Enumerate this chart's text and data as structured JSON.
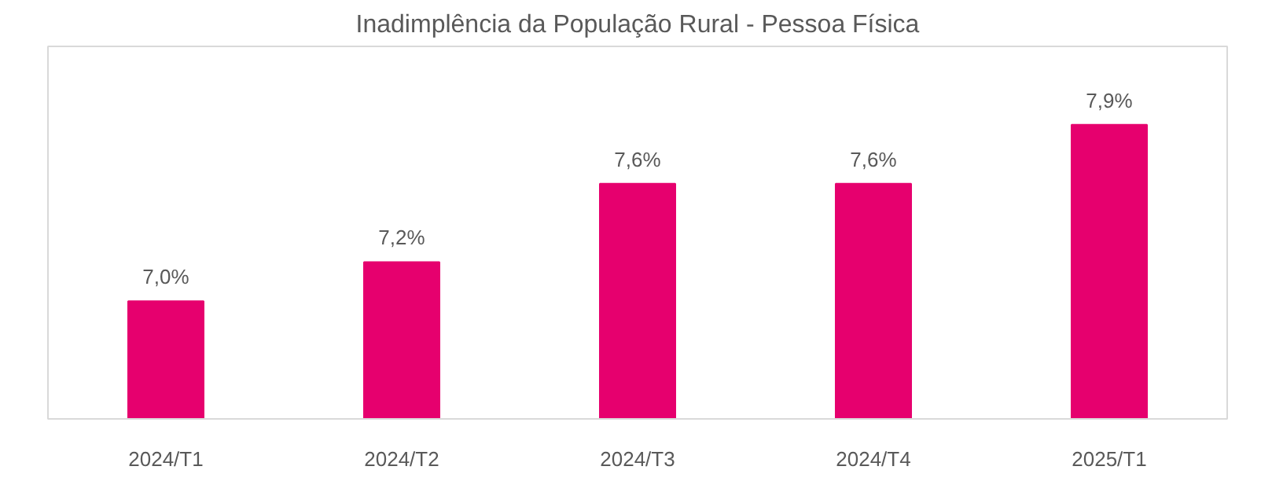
{
  "chart_data": {
    "type": "bar",
    "title": "Inadimplência da População Rural - Pessoa Física",
    "categories": [
      "2024/T1",
      "2024/T2",
      "2024/T3",
      "2024/T4",
      "2025/T1"
    ],
    "values": [
      7.0,
      7.2,
      7.6,
      7.6,
      7.9
    ],
    "value_labels": [
      "7,0%",
      "7,2%",
      "7,6%",
      "7,6%",
      "7,9%"
    ],
    "color": "#e6006e",
    "ylim": [
      6.4,
      8.3
    ],
    "tick_labels": "x",
    "grid": false
  }
}
